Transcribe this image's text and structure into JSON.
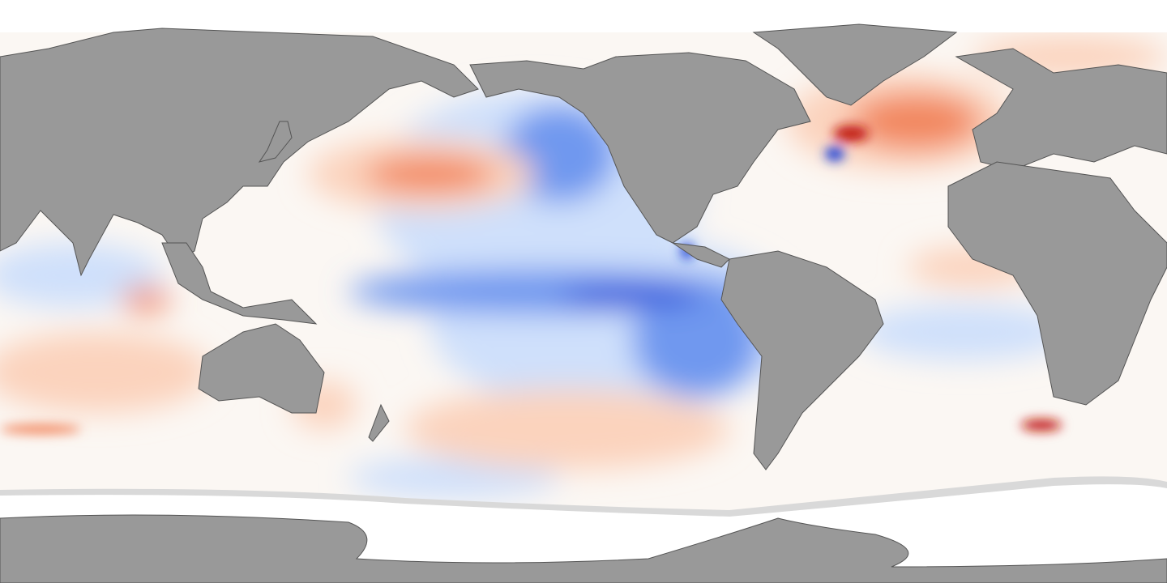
{
  "map": {
    "projection": "equirectangular",
    "colors": {
      "land": "#999999",
      "ice": "#ffffff",
      "sea_ice_edge": "#d9d9d9",
      "ocean_neutral": "#fbf7f3",
      "warm_light": "#fbd3bd",
      "warm": "#f2875f",
      "warm_strong": "#c0190f",
      "cool_light": "#cfe0fb",
      "cool": "#6f98ef",
      "cool_strong": "#1c3fd6",
      "coastline": "#555555"
    }
  }
}
